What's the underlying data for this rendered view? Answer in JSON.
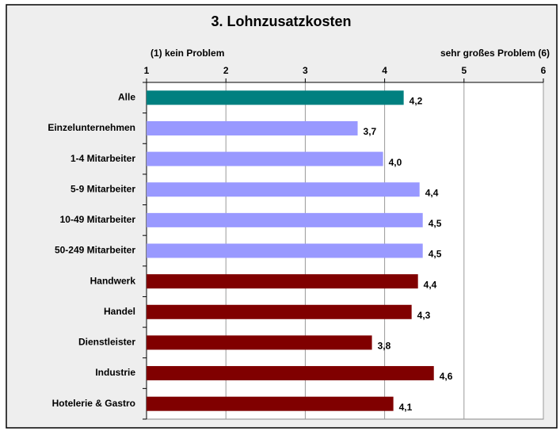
{
  "chart_data": {
    "type": "hbar",
    "title": "3. Lohnzusatzkosten",
    "annotations": [
      "(1) kein Problem",
      "sehr großes Problem (6)"
    ],
    "categories": [
      "Alle",
      "Einzelunternehmen",
      "1-4 Mitarbeiter",
      "5-9 Mitarbeiter",
      "10-49 Mitarbeiter",
      "50-249 Mitarbeiter",
      "Handwerk",
      "Handel",
      "Dienstleister",
      "Industrie",
      "Hotelerie & Gastro"
    ],
    "values": [
      4.24,
      3.66,
      3.98,
      4.44,
      4.48,
      4.48,
      4.42,
      4.34,
      3.84,
      4.62,
      4.11
    ],
    "value_labels": [
      "4,2",
      "3,7",
      "4,0",
      "4,4",
      "4,5",
      "4,5",
      "4,4",
      "4,3",
      "3,8",
      "4,6",
      "4,1"
    ],
    "colors": [
      "#008080",
      "#9999ff",
      "#9999ff",
      "#9999ff",
      "#9999ff",
      "#9999ff",
      "#800000",
      "#800000",
      "#800000",
      "#800000",
      "#800000"
    ],
    "xlim": [
      1,
      6
    ],
    "xticks": [
      1,
      2,
      3,
      4,
      5,
      6
    ],
    "grid": true
  }
}
